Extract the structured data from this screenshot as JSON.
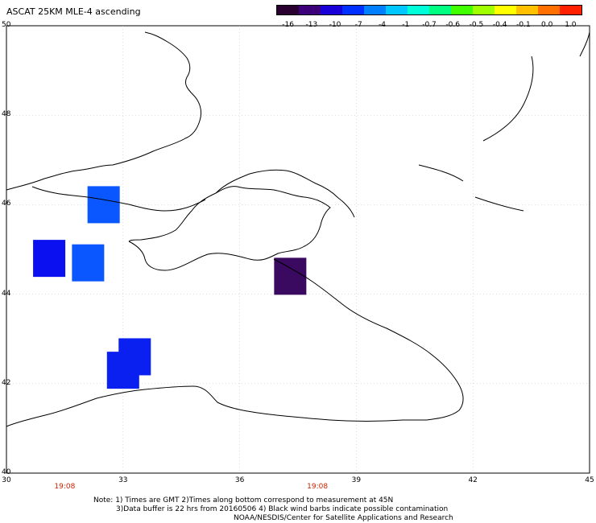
{
  "title": "ASCAT 25KM MLE-4 ascending",
  "colorbar": {
    "colors": [
      "#2a0030",
      "#3c0078",
      "#1a00d8",
      "#0030ff",
      "#0080ff",
      "#00c8ff",
      "#00ffd8",
      "#00ff80",
      "#40ff00",
      "#a0ff00",
      "#ffff00",
      "#ffc000",
      "#ff7000",
      "#ff2000"
    ],
    "labels": [
      "-16",
      "-13",
      "-10",
      "-7",
      "-4",
      "-1",
      "-0.7",
      "-0.6",
      "-0.5",
      "-0.4",
      "-0.1",
      "0.0",
      "1.0"
    ]
  },
  "axes": {
    "lat_labels": [
      "50",
      "48",
      "46",
      "44",
      "42",
      "40"
    ],
    "lon_labels": [
      "30",
      "33",
      "36",
      "39",
      "42",
      "45"
    ]
  },
  "time_labels": [
    "19:08",
    "19:08"
  ],
  "notes": {
    "line1": "Note: 1) Times are GMT 2)Times along bottom correspond to measurement at 45N",
    "line2": "3)Data buffer is 22 hrs from 20160506 4) Black wind barbs indicate possible contamination",
    "line3": "NOAA/NESDIS/Center for Satellite Applications and Research"
  },
  "data_cells": [
    {
      "lon": 32.5,
      "lat": 46.0,
      "color": "#0a56ff"
    },
    {
      "lon": 31.1,
      "lat": 44.8,
      "color": "#0a10f0"
    },
    {
      "lon": 32.1,
      "lat": 44.7,
      "color": "#0a56ff"
    },
    {
      "lon": 37.3,
      "lat": 44.4,
      "color": "#3a0a60"
    },
    {
      "lon": 33.3,
      "lat": 42.6,
      "color": "#0a20f0"
    },
    {
      "lon": 33.0,
      "lat": 42.3,
      "color": "#0a20f0"
    }
  ]
}
